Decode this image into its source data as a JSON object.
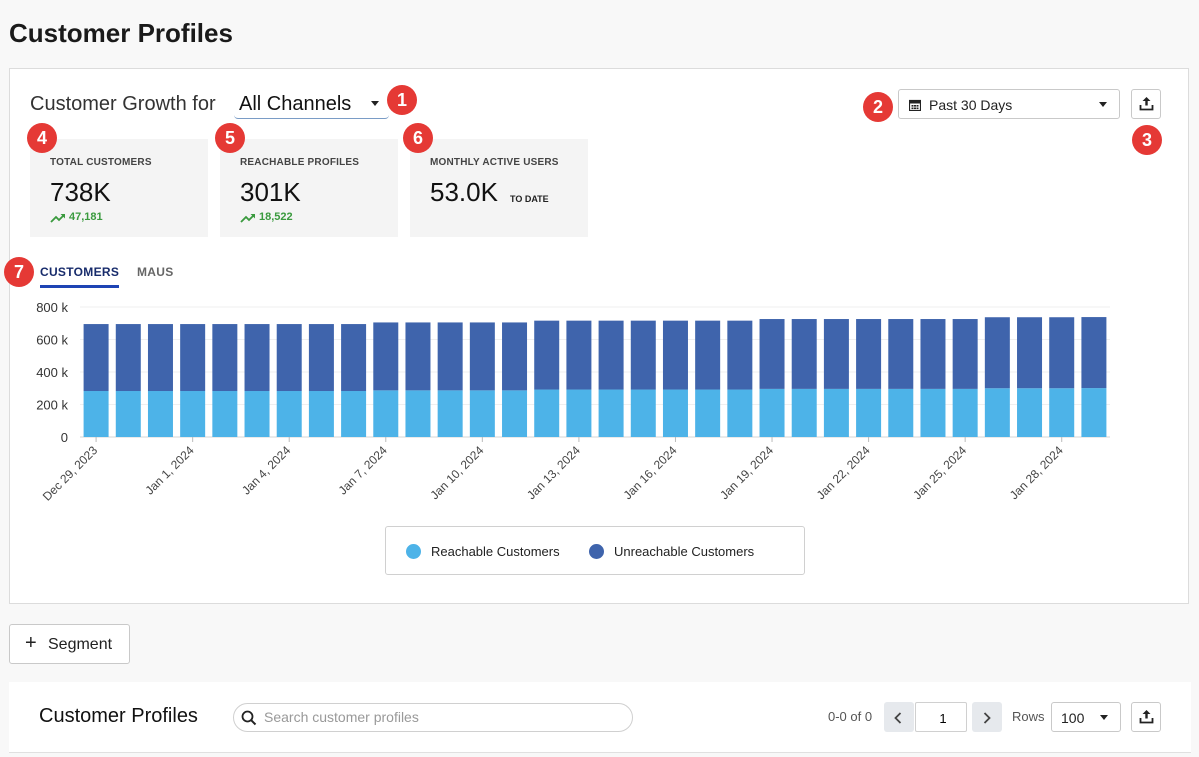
{
  "page": {
    "title": "Customer Profiles"
  },
  "growth": {
    "label": "Customer Growth for",
    "channel": "All Channels",
    "date_range": "Past 30 Days"
  },
  "badges": [
    "1",
    "2",
    "3",
    "4",
    "5",
    "6",
    "7"
  ],
  "stats": [
    {
      "label": "TOTAL CUSTOMERS",
      "value": "738K",
      "change": "47,181",
      "trend": "up"
    },
    {
      "label": "REACHABLE PROFILES",
      "value": "301K",
      "change": "18,522",
      "trend": "up"
    },
    {
      "label": "MONTHLY ACTIVE USERS",
      "value": "53.0K",
      "suffix": "TO DATE"
    }
  ],
  "tabs": [
    {
      "label": "CUSTOMERS",
      "active": true
    },
    {
      "label": "MAUS",
      "active": false
    }
  ],
  "chart_data": {
    "type": "bar",
    "stacked": true,
    "x": [
      "Dec 29, 2023",
      "Dec 30, 2023",
      "Dec 31, 2023",
      "Jan 1, 2024",
      "Jan 2, 2024",
      "Jan 3, 2024",
      "Jan 4, 2024",
      "Jan 5, 2024",
      "Jan 6, 2024",
      "Jan 7, 2024",
      "Jan 8, 2024",
      "Jan 9, 2024",
      "Jan 10, 2024",
      "Jan 11, 2024",
      "Jan 12, 2024",
      "Jan 13, 2024",
      "Jan 14, 2024",
      "Jan 15, 2024",
      "Jan 16, 2024",
      "Jan 17, 2024",
      "Jan 18, 2024",
      "Jan 19, 2024",
      "Jan 20, 2024",
      "Jan 21, 2024",
      "Jan 22, 2024",
      "Jan 23, 2024",
      "Jan 24, 2024",
      "Jan 25, 2024",
      "Jan 26, 2024",
      "Jan 27, 2024",
      "Jan 28, 2024",
      "Jan 29, 2024"
    ],
    "tick_labels": [
      "Dec 29, 2023",
      "Jan 1, 2024",
      "Jan 4, 2024",
      "Jan 7, 2024",
      "Jan 10, 2024",
      "Jan 13, 2024",
      "Jan 16, 2024",
      "Jan 19, 2024",
      "Jan 22, 2024",
      "Jan 25, 2024",
      "Jan 28, 2024"
    ],
    "y_ticks": [
      "0",
      "200 k",
      "400 k",
      "600 k",
      "800 k"
    ],
    "ylim": [
      0,
      800000
    ],
    "series": [
      {
        "name": "Reachable Customers",
        "color": "#4db3e8",
        "values": [
          283000,
          283000,
          283000,
          283000,
          283000,
          283000,
          283000,
          283000,
          283000,
          287000,
          287000,
          287000,
          287000,
          287000,
          292000,
          292000,
          292000,
          292000,
          292000,
          292000,
          292000,
          296000,
          296000,
          296000,
          296000,
          296000,
          296000,
          296000,
          300000,
          300000,
          300000,
          301000
        ]
      },
      {
        "name": "Unreachable Customers",
        "color": "#3f64ac",
        "values": [
          412000,
          412000,
          412000,
          412000,
          412000,
          412000,
          412000,
          412000,
          412000,
          418000,
          418000,
          418000,
          418000,
          418000,
          424000,
          424000,
          424000,
          424000,
          424000,
          424000,
          424000,
          430000,
          430000,
          430000,
          430000,
          430000,
          430000,
          430000,
          437000,
          437000,
          437000,
          437000
        ]
      }
    ],
    "grid": true
  },
  "legend": {
    "items": [
      "Reachable Customers",
      "Unreachable Customers"
    ]
  },
  "segment_button": {
    "label": "Segment"
  },
  "table": {
    "title": "Customer Profiles",
    "search_placeholder": "Search customer profiles",
    "pagination_text": "0-0 of 0",
    "page": "1",
    "rows_label": "Rows",
    "rows_value": "100"
  }
}
